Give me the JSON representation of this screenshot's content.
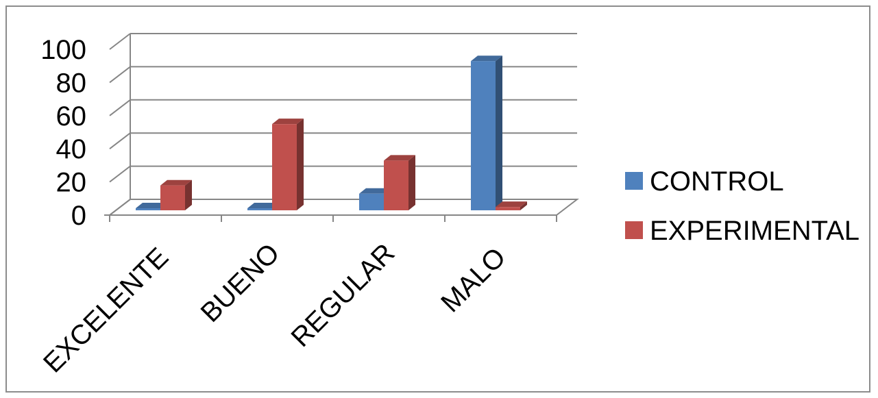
{
  "chart_data": {
    "type": "bar",
    "style": "3d-clustered-column",
    "categories": [
      "EXCELENTE",
      "BUENO",
      "REGULAR",
      "MALO"
    ],
    "series": [
      {
        "name": "CONTROL",
        "values": [
          0,
          0,
          10,
          90
        ],
        "color": "#4f81bd"
      },
      {
        "name": "EXPERIMENTAL",
        "values": [
          15,
          52,
          30,
          2
        ],
        "color": "#c0504d"
      }
    ],
    "ylim": [
      0,
      100
    ],
    "yticks": [
      0,
      20,
      40,
      60,
      80,
      100
    ],
    "grid": true,
    "legend": "right",
    "title": "",
    "xlabel": "",
    "ylabel": ""
  }
}
